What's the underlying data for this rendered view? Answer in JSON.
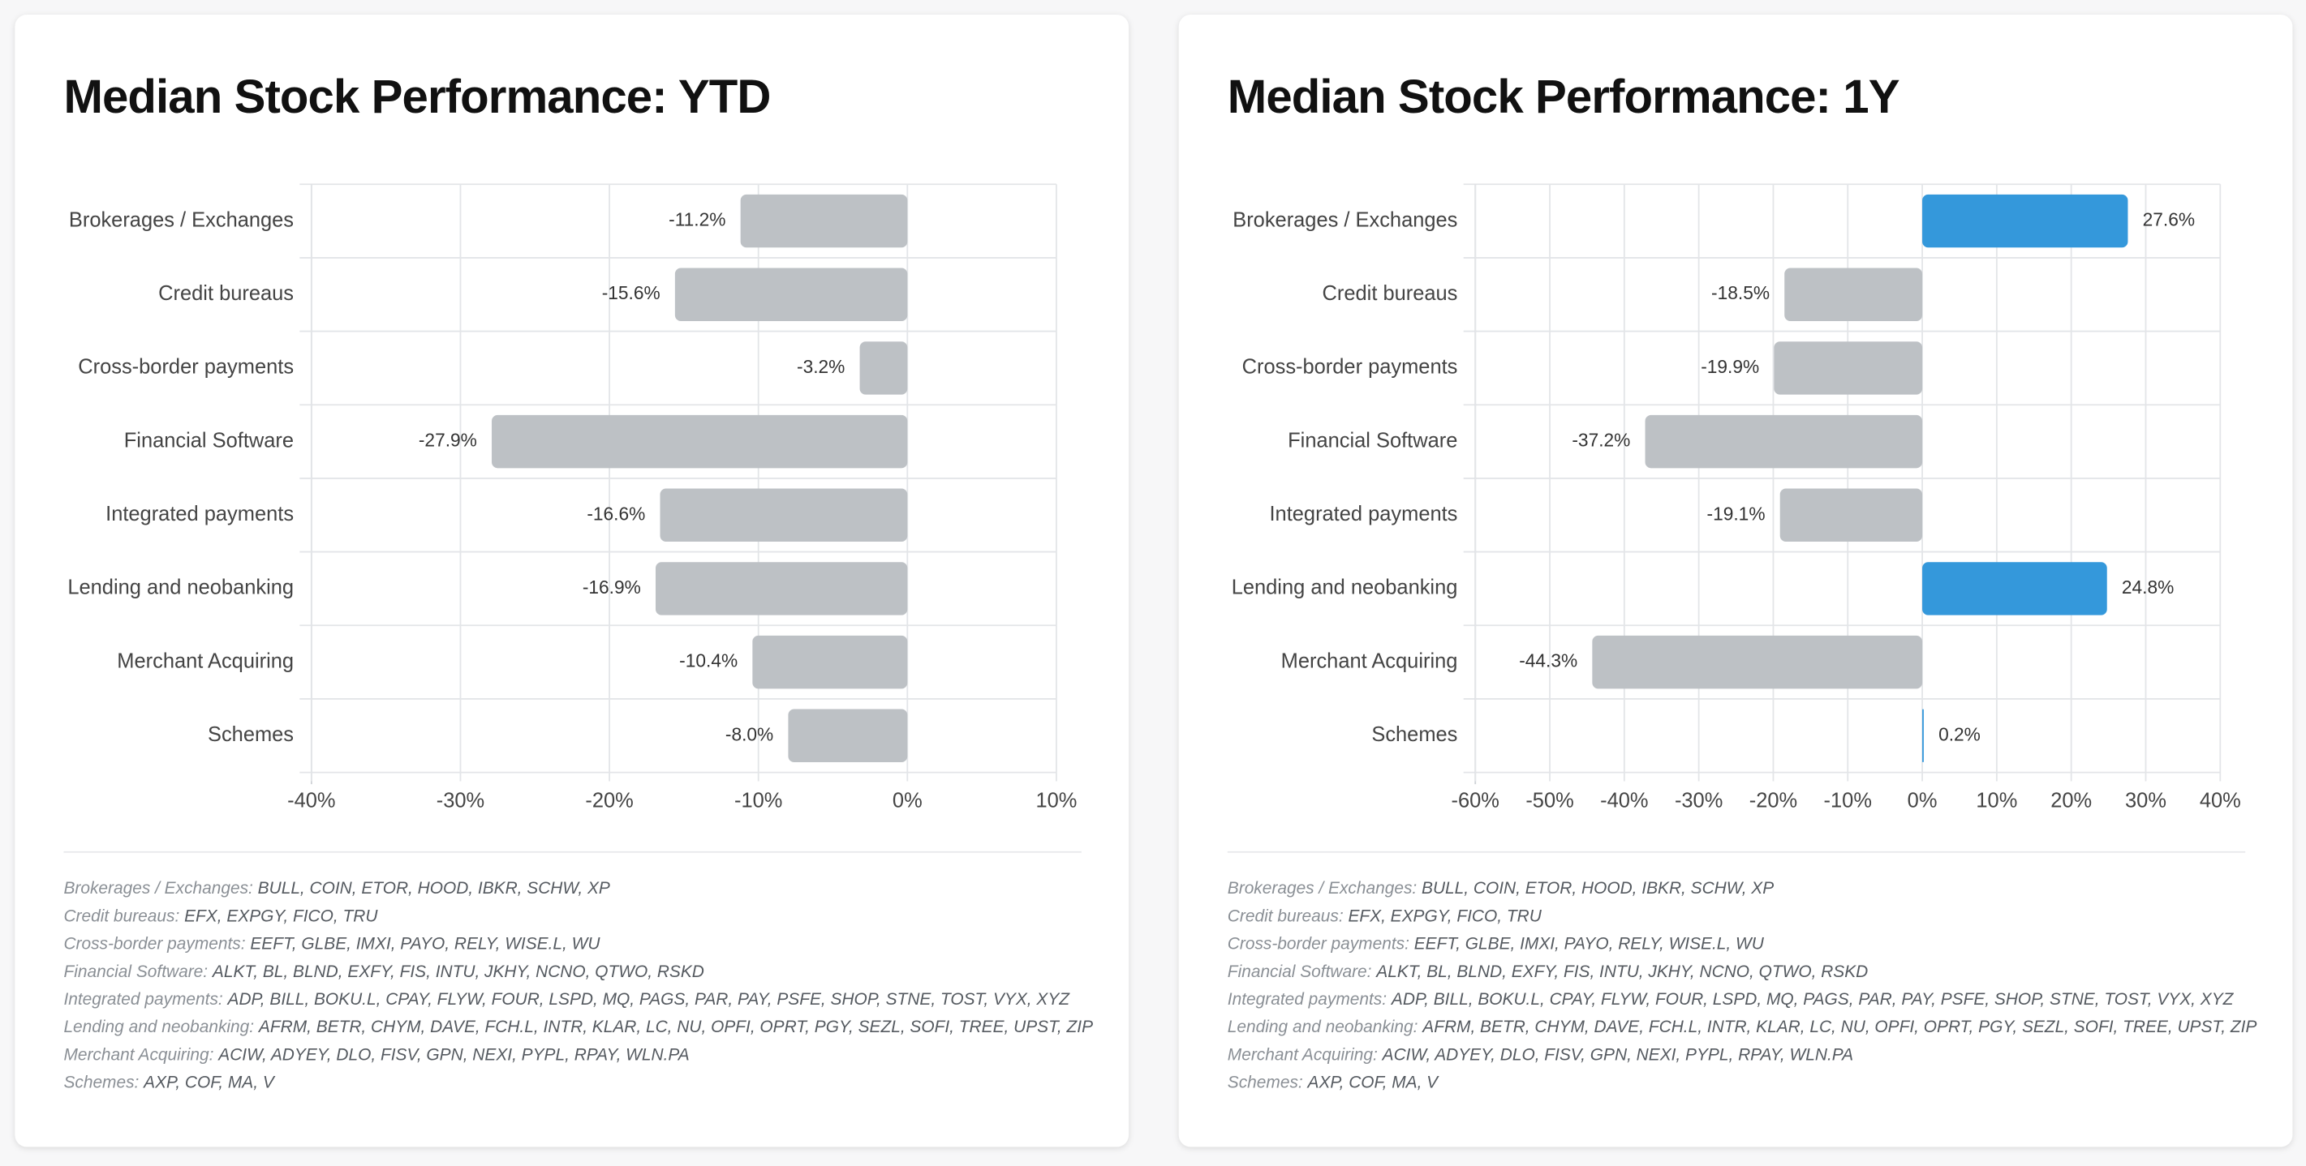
{
  "chart_data": [
    {
      "type": "bar",
      "orientation": "horizontal",
      "title": "Median Stock Performance: YTD",
      "categories": [
        "Brokerages / Exchanges",
        "Credit bureaus",
        "Cross-border payments",
        "Financial Software",
        "Integrated payments",
        "Lending and neobanking",
        "Merchant Acquiring",
        "Schemes"
      ],
      "values": [
        -11.2,
        -15.6,
        -3.2,
        -27.9,
        -16.6,
        -16.9,
        -10.4,
        -8.0
      ],
      "value_labels": [
        "-11.2%",
        "-15.6%",
        "-3.2%",
        "-27.9%",
        "-16.6%",
        "-16.9%",
        "-10.4%",
        "-8.0%"
      ],
      "colors": [
        "#bdc1c5",
        "#bdc1c5",
        "#bdc1c5",
        "#bdc1c5",
        "#bdc1c5",
        "#bdc1c5",
        "#bdc1c5",
        "#bdc1c5"
      ],
      "xlim": [
        -40,
        10
      ],
      "xticks": [
        {
          "value": -40,
          "label": "-40%"
        },
        {
          "value": -30,
          "label": "-30%"
        },
        {
          "value": -20,
          "label": "-20%"
        },
        {
          "value": -10,
          "label": "-10%"
        },
        {
          "value": 0,
          "label": "0%"
        },
        {
          "value": 10,
          "label": "10%"
        }
      ],
      "grid": true,
      "notes": [
        {
          "label": "Brokerages / Exchanges:",
          "tickers": "BULL, COIN, ETOR, HOOD, IBKR, SCHW, XP"
        },
        {
          "label": "Credit bureaus:",
          "tickers": "EFX, EXPGY, FICO, TRU"
        },
        {
          "label": "Cross-border payments:",
          "tickers": "EEFT, GLBE, IMXI, PAYO, RELY, WISE.L, WU"
        },
        {
          "label": "Financial Software:",
          "tickers": "ALKT, BL, BLND, EXFY, FIS, INTU, JKHY, NCNO, QTWO, RSKD"
        },
        {
          "label": "Integrated payments:",
          "tickers": "ADP, BILL, BOKU.L, CPAY, FLYW, FOUR, LSPD, MQ, PAGS, PAR, PAY, PSFE, SHOP, STNE, TOST, VYX, XYZ"
        },
        {
          "label": "Lending and neobanking:",
          "tickers": "AFRM, BETR, CHYM, DAVE, FCH.L, INTR, KLAR, LC, NU, OPFI, OPRT, PGY, SEZL, SOFI, TREE, UPST, ZIP"
        },
        {
          "label": "Merchant Acquiring:",
          "tickers": "ACIW, ADYEY, DLO, FISV, GPN, NEXI, PYPL, RPAY, WLN.PA"
        },
        {
          "label": "Schemes:",
          "tickers": "AXP, COF, MA, V"
        }
      ]
    },
    {
      "type": "bar",
      "orientation": "horizontal",
      "title": "Median Stock Performance: 1Y",
      "categories": [
        "Brokerages / Exchanges",
        "Credit bureaus",
        "Cross-border payments",
        "Financial Software",
        "Integrated payments",
        "Lending and neobanking",
        "Merchant Acquiring",
        "Schemes"
      ],
      "values": [
        27.6,
        -18.5,
        -19.9,
        -37.2,
        -19.1,
        24.8,
        -44.3,
        0.2
      ],
      "value_labels": [
        "27.6%",
        "-18.5%",
        "-19.9%",
        "-37.2%",
        "-19.1%",
        "24.8%",
        "-44.3%",
        "0.2%"
      ],
      "colors": [
        "#3498db",
        "#bdc1c5",
        "#bdc1c5",
        "#bdc1c5",
        "#bdc1c5",
        "#3498db",
        "#bdc1c5",
        "#3498db"
      ],
      "xlim": [
        -60,
        40
      ],
      "xticks": [
        {
          "value": -60,
          "label": "-60%"
        },
        {
          "value": -50,
          "label": "-50%"
        },
        {
          "value": -40,
          "label": "-40%"
        },
        {
          "value": -30,
          "label": "-30%"
        },
        {
          "value": -20,
          "label": "-20%"
        },
        {
          "value": -10,
          "label": "-10%"
        },
        {
          "value": 0,
          "label": "0%"
        },
        {
          "value": 10,
          "label": "10%"
        },
        {
          "value": 20,
          "label": "20%"
        },
        {
          "value": 30,
          "label": "30%"
        },
        {
          "value": 40,
          "label": "40%"
        }
      ],
      "grid": true,
      "notes": [
        {
          "label": "Brokerages / Exchanges:",
          "tickers": "BULL, COIN, ETOR, HOOD, IBKR, SCHW, XP"
        },
        {
          "label": "Credit bureaus:",
          "tickers": "EFX, EXPGY, FICO, TRU"
        },
        {
          "label": "Cross-border payments:",
          "tickers": "EEFT, GLBE, IMXI, PAYO, RELY, WISE.L, WU"
        },
        {
          "label": "Financial Software:",
          "tickers": "ALKT, BL, BLND, EXFY, FIS, INTU, JKHY, NCNO, QTWO, RSKD"
        },
        {
          "label": "Integrated payments:",
          "tickers": "ADP, BILL, BOKU.L, CPAY, FLYW, FOUR, LSPD, MQ, PAGS, PAR, PAY, PSFE, SHOP, STNE, TOST, VYX, XYZ"
        },
        {
          "label": "Lending and neobanking:",
          "tickers": "AFRM, BETR, CHYM, DAVE, FCH.L, INTR, KLAR, LC, NU, OPFI, OPRT, PGY, SEZL, SOFI, TREE, UPST, ZIP"
        },
        {
          "label": "Merchant Acquiring:",
          "tickers": "ACIW, ADYEY, DLO, FISV, GPN, NEXI, PYPL, RPAY, WLN.PA"
        },
        {
          "label": "Schemes:",
          "tickers": "AXP, COF, MA, V"
        }
      ]
    }
  ]
}
